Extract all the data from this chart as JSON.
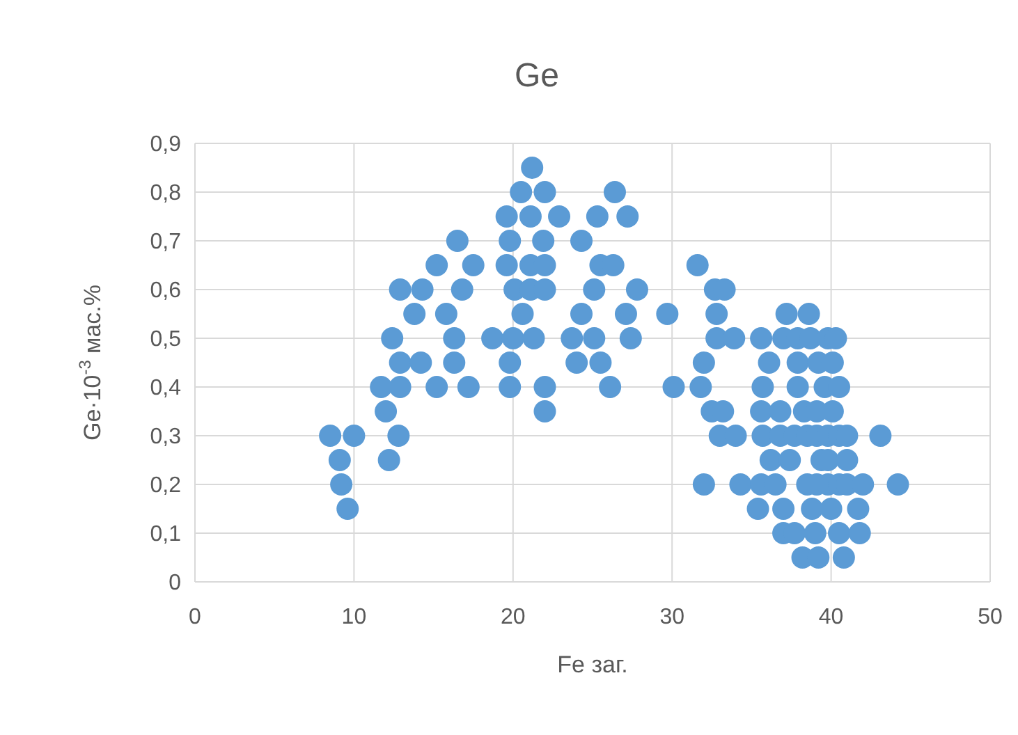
{
  "chart_data": {
    "type": "scatter",
    "title": "Ge",
    "xlabel": "Fe заг.",
    "ylabel": "Ge·10$^{-3}$ мас.%",
    "xlim": [
      0,
      50
    ],
    "xticks": [
      0,
      10,
      20,
      30,
      40,
      50
    ],
    "ylim": [
      0,
      0.9
    ],
    "yticks": [
      0,
      {
        "value": 0.1,
        "label": "0,1"
      },
      {
        "value": 0.2,
        "label": "0,2"
      },
      {
        "value": 0.3,
        "label": "0,3"
      },
      {
        "value": 0.4,
        "label": "0,4"
      },
      {
        "value": 0.5,
        "label": "0,5"
      },
      {
        "value": 0.6,
        "label": "0,6"
      },
      {
        "value": 0.7,
        "label": "0,7"
      },
      {
        "value": 0.8,
        "label": "0,8"
      },
      {
        "value": 0.9,
        "label": "0,9"
      }
    ],
    "grid": true,
    "marker": "circle",
    "series": [
      {
        "color": "#5b9bd5",
        "x": [
          8.5,
          10,
          9.1,
          9.2,
          9.6,
          11.7,
          12.9,
          12.0,
          12.8,
          12.2,
          12.4,
          12.9,
          14.2,
          15.2,
          16.3,
          16.3,
          17.2,
          12.9,
          14.3,
          13.8,
          15.8,
          16.8,
          15.2,
          16.5,
          17.5,
          18.7,
          20.0,
          21.3,
          19.8,
          19.8,
          22.0,
          22.0,
          20.6,
          20.1,
          21.1,
          22.0,
          19.6,
          21.1,
          22.0,
          19.8,
          21.9,
          19.6,
          21.1,
          20.5,
          22.0,
          21.2,
          22.9,
          24.3,
          25.3,
          27.2,
          26.4,
          25.5,
          26.3,
          25.1,
          27.8,
          24.3,
          27.1,
          29.7,
          23.7,
          25.1,
          27.4,
          24.0,
          25.5,
          26.1,
          30.1,
          32.7,
          33.3,
          31.6,
          32.8,
          37.2,
          38.6,
          32.8,
          33.9,
          35.6,
          37.0,
          37.9,
          38.7,
          39.8,
          40.3,
          32.0,
          36.1,
          37.9,
          39.2,
          40.1,
          31.8,
          35.7,
          37.9,
          39.6,
          40.5,
          32.5,
          33.2,
          35.6,
          36.8,
          38.3,
          39.1,
          40.1,
          33.0,
          34.0,
          35.7,
          36.8,
          37.7,
          38.5,
          39.1,
          39.8,
          40.5,
          41.0,
          43.1,
          36.2,
          37.4,
          39.4,
          39.8,
          41.0,
          32.0,
          34.3,
          35.6,
          36.5,
          38.5,
          39.1,
          39.8,
          40.5,
          41.0,
          42.0,
          44.2,
          35.4,
          37.0,
          38.8,
          40.0,
          41.7,
          37.0,
          37.7,
          39.0,
          40.5,
          41.8,
          38.2,
          39.2,
          40.8
        ],
        "values": [
          0.3,
          0.3,
          0.25,
          0.2,
          0.15,
          0.4,
          0.4,
          0.35,
          0.3,
          0.25,
          0.5,
          0.45,
          0.45,
          0.4,
          0.5,
          0.45,
          0.4,
          0.6,
          0.6,
          0.55,
          0.55,
          0.6,
          0.65,
          0.7,
          0.65,
          0.5,
          0.5,
          0.5,
          0.45,
          0.4,
          0.4,
          0.35,
          0.55,
          0.6,
          0.6,
          0.6,
          0.65,
          0.65,
          0.65,
          0.7,
          0.7,
          0.75,
          0.75,
          0.8,
          0.8,
          0.85,
          0.75,
          0.7,
          0.75,
          0.75,
          0.8,
          0.65,
          0.65,
          0.6,
          0.6,
          0.55,
          0.55,
          0.55,
          0.5,
          0.5,
          0.5,
          0.45,
          0.45,
          0.4,
          0.4,
          0.6,
          0.6,
          0.65,
          0.55,
          0.55,
          0.55,
          0.5,
          0.5,
          0.5,
          0.5,
          0.5,
          0.5,
          0.5,
          0.5,
          0.45,
          0.45,
          0.45,
          0.45,
          0.45,
          0.4,
          0.4,
          0.4,
          0.4,
          0.4,
          0.35,
          0.35,
          0.35,
          0.35,
          0.35,
          0.35,
          0.35,
          0.3,
          0.3,
          0.3,
          0.3,
          0.3,
          0.3,
          0.3,
          0.3,
          0.3,
          0.3,
          0.3,
          0.25,
          0.25,
          0.25,
          0.25,
          0.25,
          0.2,
          0.2,
          0.2,
          0.2,
          0.2,
          0.2,
          0.2,
          0.2,
          0.2,
          0.2,
          0.2,
          0.15,
          0.15,
          0.15,
          0.15,
          0.15,
          0.1,
          0.1,
          0.1,
          0.1,
          0.1,
          0.05,
          0.05,
          0.05
        ]
      }
    ]
  }
}
